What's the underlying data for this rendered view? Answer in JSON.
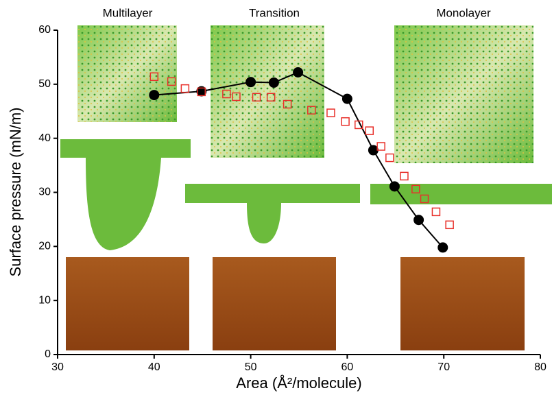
{
  "chart_data": {
    "type": "line",
    "annotations": [
      "Multilayer",
      "Transition",
      "Monolayer"
    ],
    "xlabel": "Area (Å²/molecule)",
    "ylabel": "Surface pressure (mN/m)",
    "xlim": [
      30,
      80
    ],
    "xticks": [
      30,
      40,
      50,
      60,
      70,
      80
    ],
    "ylim": [
      0,
      60
    ],
    "yticks": [
      0,
      10,
      20,
      30,
      40,
      50,
      60
    ],
    "series": [
      {
        "color": "#000000",
        "marker": "circle",
        "filled": true,
        "line": true,
        "x": [
          40.0,
          44.9,
          50.0,
          52.4,
          54.9,
          60.0,
          62.7,
          64.9,
          67.4,
          69.9
        ],
        "values": [
          48.0,
          48.7,
          50.4,
          50.3,
          52.2,
          47.3,
          37.8,
          31.1,
          24.9,
          19.8
        ]
      },
      {
        "color": "#e8302a",
        "marker": "square",
        "filled": false,
        "line": false,
        "x": [
          40.0,
          41.8,
          43.2,
          44.9,
          47.5,
          48.5,
          50.6,
          52.1,
          53.8,
          56.3,
          58.3,
          59.8,
          61.2,
          62.3,
          63.5,
          64.4,
          65.9,
          67.1,
          68.0,
          69.2,
          70.6
        ],
        "values": [
          51.4,
          50.5,
          49.2,
          48.6,
          48.2,
          47.7,
          47.6,
          47.6,
          46.3,
          45.2,
          44.7,
          43.1,
          42.5,
          41.4,
          38.5,
          36.4,
          33.0,
          30.6,
          28.8,
          26.4,
          24.0
        ]
      }
    ]
  }
}
